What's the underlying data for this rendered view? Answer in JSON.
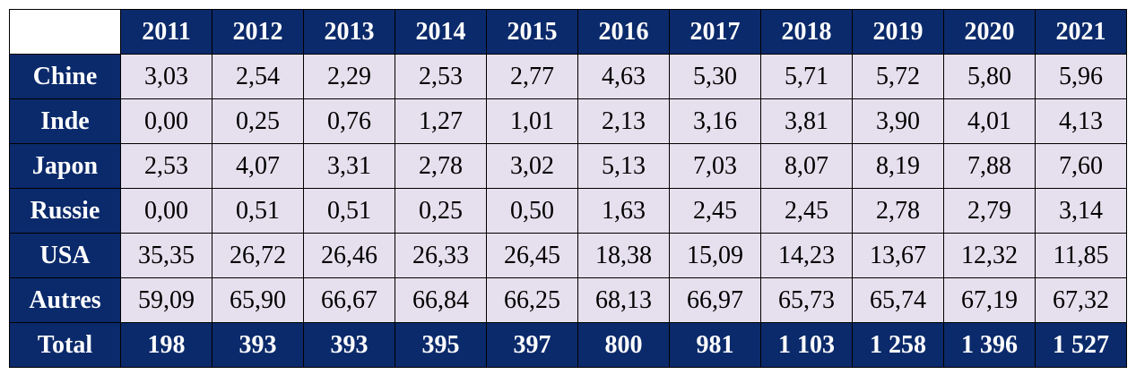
{
  "years": [
    "2011",
    "2012",
    "2013",
    "2014",
    "2015",
    "2016",
    "2017",
    "2018",
    "2019",
    "2020",
    "2021"
  ],
  "rows": [
    {
      "label": "Chine",
      "values": [
        "3,03",
        "2,54",
        "2,29",
        "2,53",
        "2,77",
        "4,63",
        "5,30",
        "5,71",
        "5,72",
        "5,80",
        "5,96"
      ]
    },
    {
      "label": "Inde",
      "values": [
        "0,00",
        "0,25",
        "0,76",
        "1,27",
        "1,01",
        "2,13",
        "3,16",
        "3,81",
        "3,90",
        "4,01",
        "4,13"
      ]
    },
    {
      "label": "Japon",
      "values": [
        "2,53",
        "4,07",
        "3,31",
        "2,78",
        "3,02",
        "5,13",
        "7,03",
        "8,07",
        "8,19",
        "7,88",
        "7,60"
      ]
    },
    {
      "label": "Russie",
      "values": [
        "0,00",
        "0,51",
        "0,51",
        "0,25",
        "0,50",
        "1,63",
        "2,45",
        "2,45",
        "2,78",
        "2,79",
        "3,14"
      ]
    },
    {
      "label": "USA",
      "values": [
        "35,35",
        "26,72",
        "26,46",
        "26,33",
        "26,45",
        "18,38",
        "15,09",
        "14,23",
        "13,67",
        "12,32",
        "11,85"
      ]
    },
    {
      "label": "Autres",
      "values": [
        "59,09",
        "65,90",
        "66,67",
        "66,84",
        "66,25",
        "68,13",
        "66,97",
        "65,73",
        "65,74",
        "67,19",
        "67,32"
      ]
    }
  ],
  "total": {
    "label": "Total",
    "values": [
      "198",
      "393",
      "393",
      "395",
      "397",
      "800",
      "981",
      "1 103",
      "1 258",
      "1 396",
      "1 527"
    ]
  },
  "colors": {
    "header_bg": "#0b2a6b",
    "cell_bg": "#e6e0ee",
    "text_light": "#ffffff"
  }
}
